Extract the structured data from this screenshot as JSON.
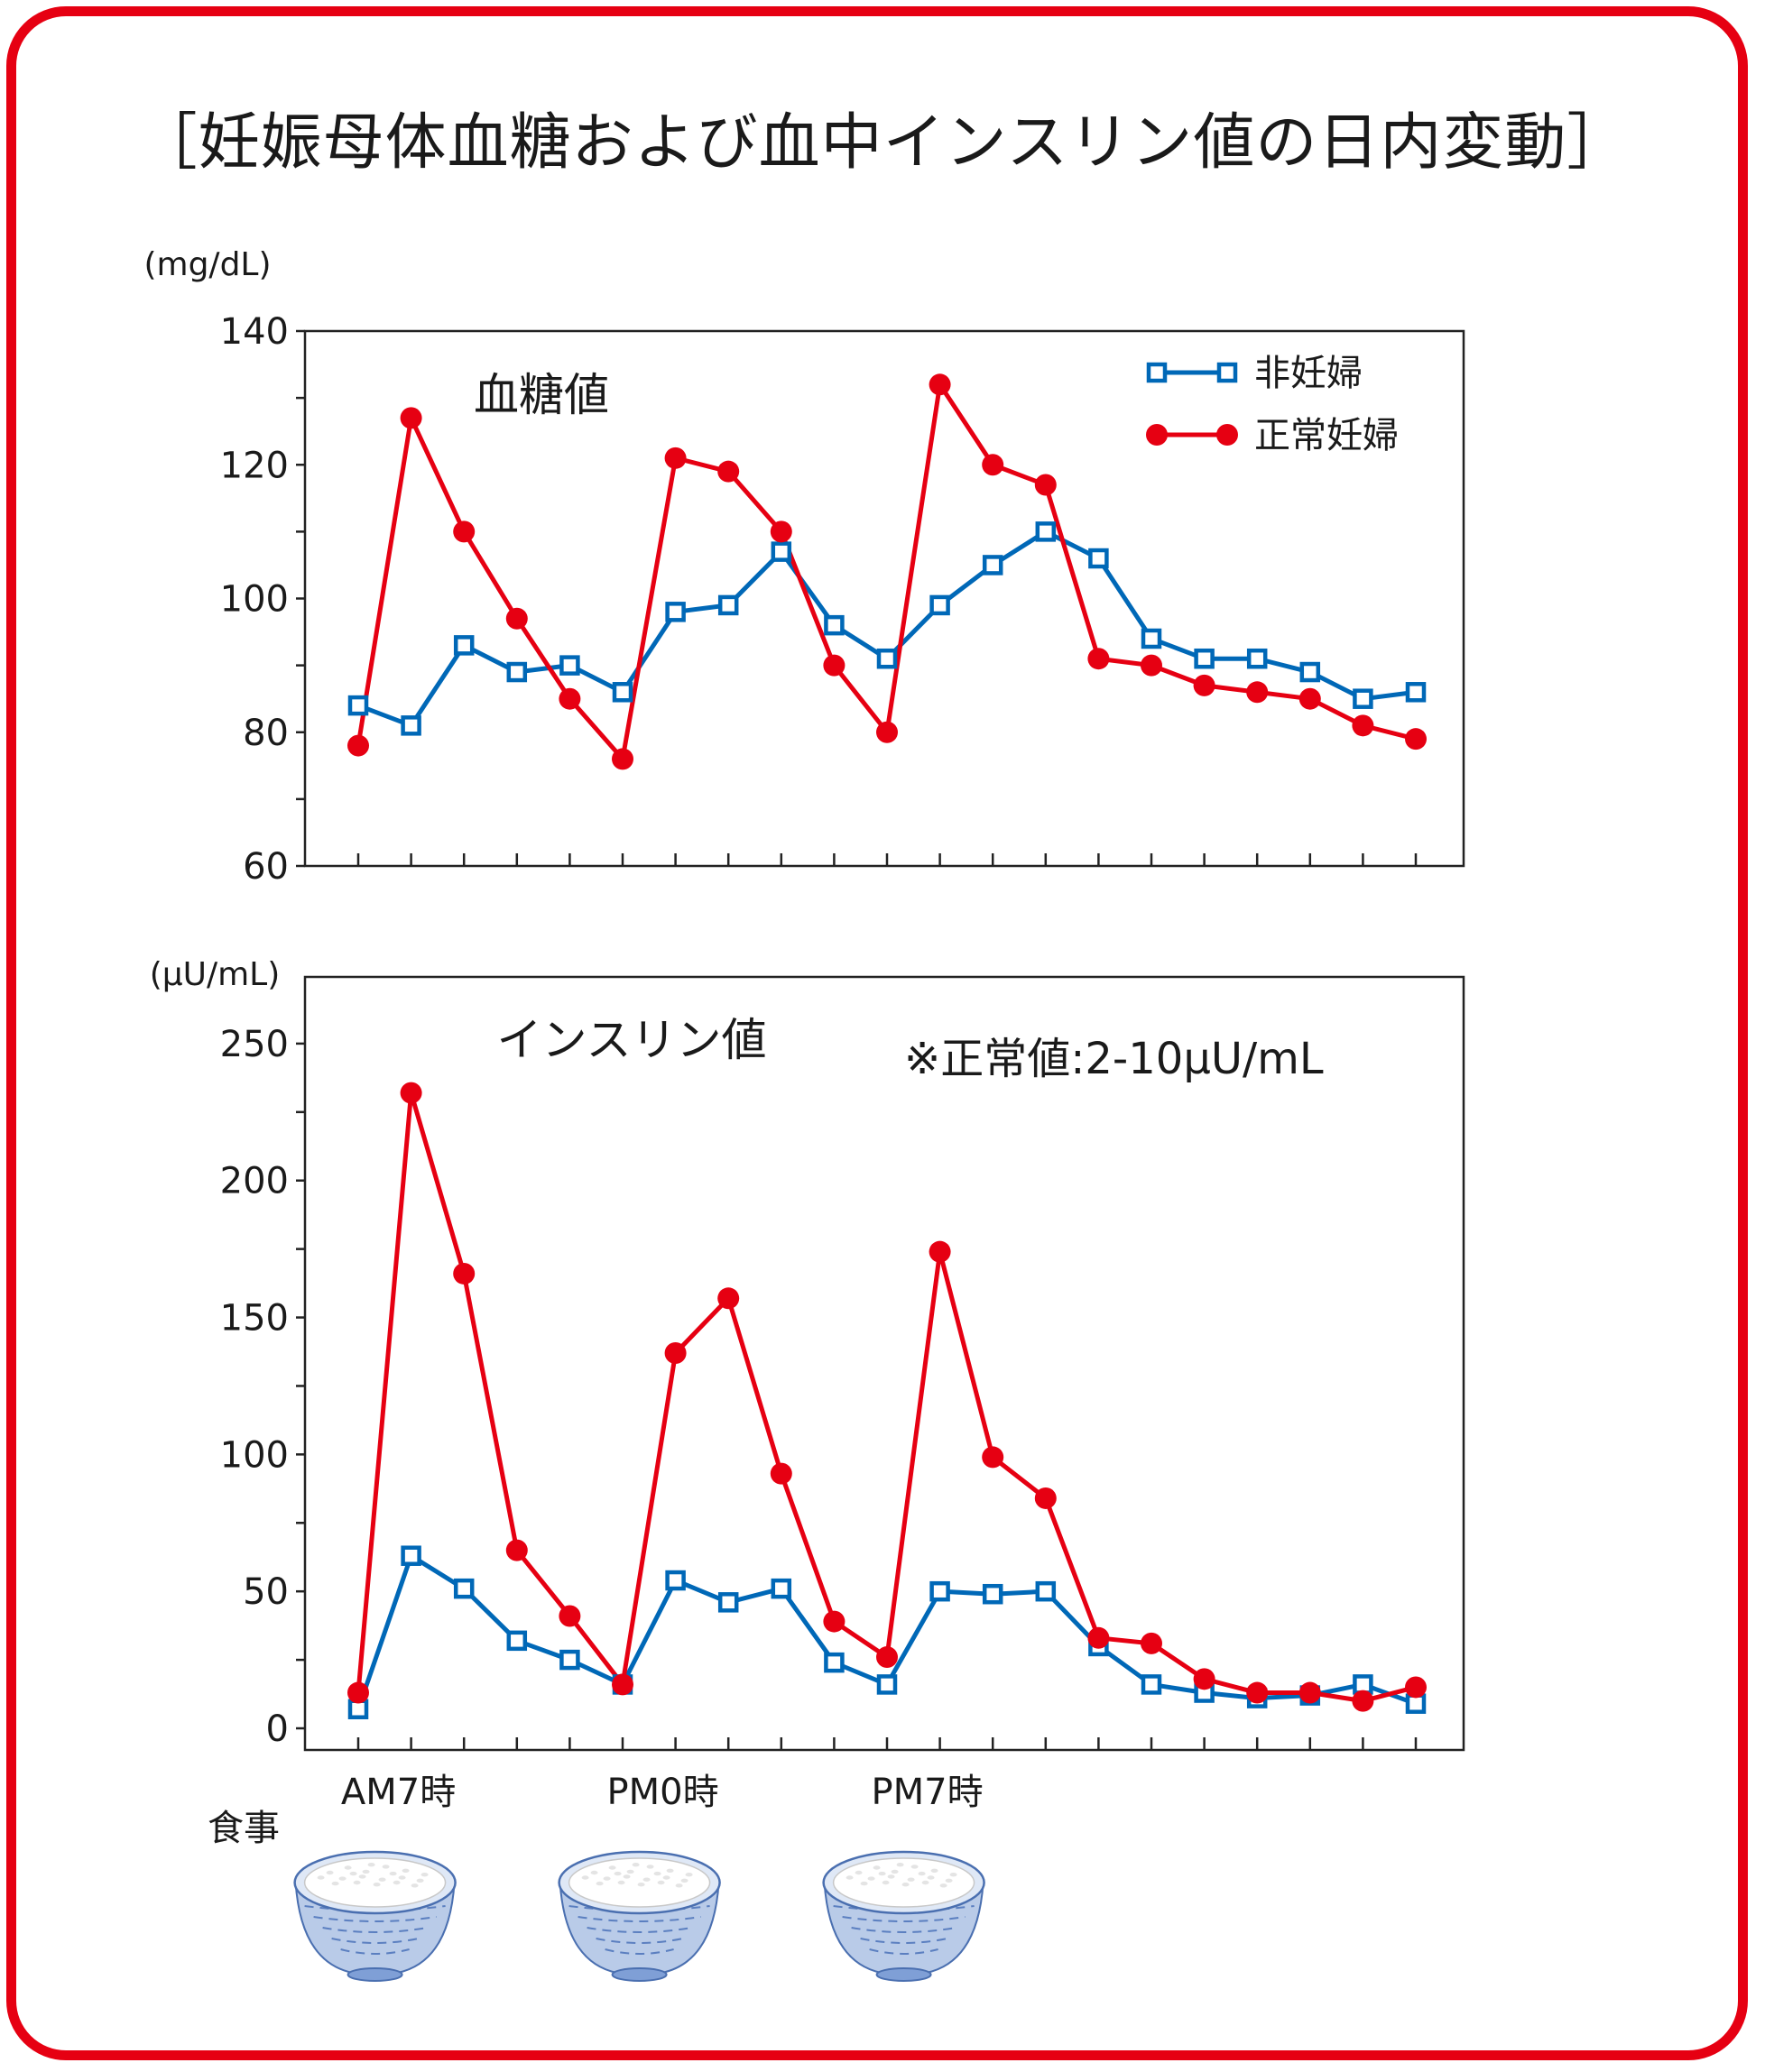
{
  "title": "［妊娠母体血糖および血中インスリン値の日内変動］",
  "colors": {
    "frame": "#e60012",
    "non_pregnant": "#0068b7",
    "pregnant": "#e60012",
    "axis": "#222222"
  },
  "meal_label": "食事",
  "meal_icon": "rice-bowl-icon",
  "chart_data": [
    {
      "type": "line",
      "title": "血糖値",
      "unit": "(mg/dL)",
      "ylim": [
        60,
        140
      ],
      "yticks": [
        60,
        80,
        100,
        120,
        140
      ],
      "x": [
        1,
        2,
        3,
        4,
        5,
        6,
        7,
        8,
        9,
        10,
        11,
        12,
        13,
        14,
        15,
        16,
        17,
        18,
        19,
        20,
        21
      ],
      "legend": "top-right",
      "series": [
        {
          "name": "非妊婦",
          "marker": "square",
          "values": [
            84,
            81,
            93,
            89,
            90,
            86,
            98,
            99,
            107,
            96,
            91,
            99,
            105,
            110,
            106,
            94,
            91,
            91,
            89,
            85,
            86
          ]
        },
        {
          "name": "正常妊婦",
          "marker": "circle",
          "values": [
            78,
            127,
            110,
            97,
            85,
            76,
            121,
            119,
            110,
            90,
            80,
            132,
            120,
            117,
            91,
            90,
            87,
            86,
            85,
            81,
            79
          ]
        }
      ]
    },
    {
      "type": "line",
      "title": "インスリン値",
      "unit": "(μU/mL)",
      "note": "※正常値:2-10μU/mL",
      "ylim": [
        0,
        275
      ],
      "yticks": [
        0,
        50,
        100,
        150,
        200,
        250
      ],
      "x": [
        1,
        2,
        3,
        4,
        5,
        6,
        7,
        8,
        9,
        10,
        11,
        12,
        13,
        14,
        15,
        16,
        17,
        18,
        19,
        20,
        21
      ],
      "series": [
        {
          "name": "非妊婦",
          "marker": "square",
          "values": [
            7,
            63,
            51,
            32,
            25,
            16,
            54,
            46,
            51,
            24,
            16,
            50,
            49,
            50,
            30,
            16,
            13,
            11,
            12,
            16,
            9
          ]
        },
        {
          "name": "正常妊婦",
          "marker": "circle",
          "values": [
            13,
            232,
            166,
            65,
            41,
            16,
            137,
            157,
            93,
            39,
            26,
            174,
            99,
            84,
            33,
            31,
            18,
            13,
            13,
            10,
            15
          ]
        }
      ],
      "time_labels": [
        {
          "at": 2,
          "label": "AM7時"
        },
        {
          "at": 7,
          "label": "PM0時"
        },
        {
          "at": 12,
          "label": "PM7時"
        }
      ]
    }
  ]
}
